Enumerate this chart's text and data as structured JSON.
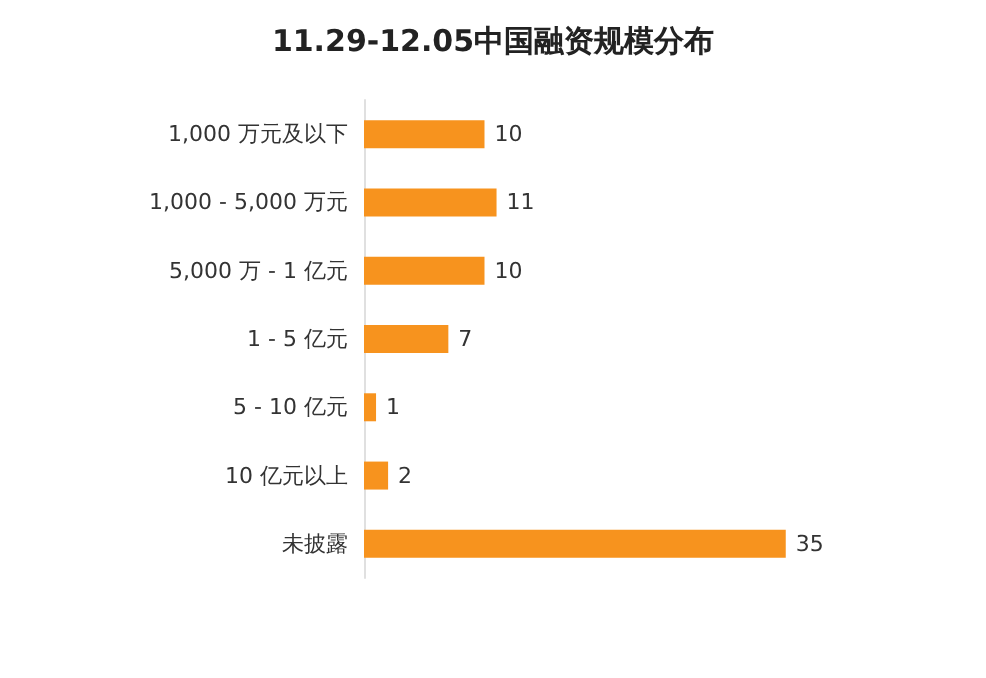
{
  "chart_data": {
    "type": "bar",
    "title": "11.29-12.05中国融资规模分布",
    "orientation": "horizontal",
    "categories": [
      "1,000 万元及以下",
      "1,000 - 5,000 万元",
      "5,000 万 - 1 亿元",
      "1 - 5 亿元",
      "5 - 10 亿元",
      "10 亿元以上",
      "未披露"
    ],
    "values": [
      10,
      11,
      10,
      7,
      1,
      2,
      35
    ],
    "color": "#f7931e",
    "data_labels": true,
    "tick_labels": "y",
    "grid": false
  }
}
